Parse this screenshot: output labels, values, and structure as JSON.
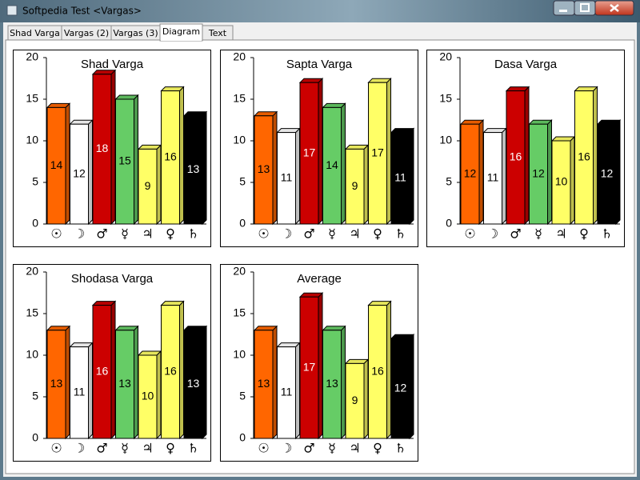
{
  "window": {
    "title": "Softpedia Test <Vargas>"
  },
  "tabs": [
    "Shad Varga",
    "Vargas (2)",
    "Vargas (3)",
    "Diagram",
    "Text"
  ],
  "selected_tab": 3,
  "chart_data": [
    {
      "type": "bar",
      "title": "Shad Varga",
      "categories": [
        "☉",
        "☽",
        "♂",
        "☿",
        "♃",
        "♀",
        "♄"
      ],
      "values": [
        14,
        12,
        18,
        15,
        9,
        16,
        13
      ],
      "colors": [
        "#ff6600",
        "#ffffff",
        "#cc0000",
        "#66cc66",
        "#ffff66",
        "#ffff66",
        "#000000"
      ],
      "ylim": [
        0,
        20
      ],
      "yticks": [
        0,
        5,
        10,
        15,
        20
      ]
    },
    {
      "type": "bar",
      "title": "Sapta Varga",
      "categories": [
        "☉",
        "☽",
        "♂",
        "☿",
        "♃",
        "♀",
        "♄"
      ],
      "values": [
        13,
        11,
        17,
        14,
        9,
        17,
        11
      ],
      "colors": [
        "#ff6600",
        "#ffffff",
        "#cc0000",
        "#66cc66",
        "#ffff66",
        "#ffff66",
        "#000000"
      ],
      "ylim": [
        0,
        20
      ],
      "yticks": [
        0,
        5,
        10,
        15,
        20
      ]
    },
    {
      "type": "bar",
      "title": "Dasa Varga",
      "categories": [
        "☉",
        "☽",
        "♂",
        "☿",
        "♃",
        "♀",
        "♄"
      ],
      "values": [
        12,
        11,
        16,
        12,
        10,
        16,
        12
      ],
      "colors": [
        "#ff6600",
        "#ffffff",
        "#cc0000",
        "#66cc66",
        "#ffff66",
        "#ffff66",
        "#000000"
      ],
      "ylim": [
        0,
        20
      ],
      "yticks": [
        0,
        5,
        10,
        15,
        20
      ]
    },
    {
      "type": "bar",
      "title": "Shodasa Varga",
      "categories": [
        "☉",
        "☽",
        "♂",
        "☿",
        "♃",
        "♀",
        "♄"
      ],
      "values": [
        13,
        11,
        16,
        13,
        10,
        16,
        13
      ],
      "colors": [
        "#ff6600",
        "#ffffff",
        "#cc0000",
        "#66cc66",
        "#ffff66",
        "#ffff66",
        "#000000"
      ],
      "ylim": [
        0,
        20
      ],
      "yticks": [
        0,
        5,
        10,
        15,
        20
      ]
    },
    {
      "type": "bar",
      "title": "Average",
      "categories": [
        "☉",
        "☽",
        "♂",
        "☿",
        "♃",
        "♀",
        "♄"
      ],
      "values": [
        13,
        11,
        17,
        13,
        9,
        16,
        12
      ],
      "colors": [
        "#ff6600",
        "#ffffff",
        "#cc0000",
        "#66cc66",
        "#ffff66",
        "#ffff66",
        "#000000"
      ],
      "ylim": [
        0,
        20
      ],
      "yticks": [
        0,
        5,
        10,
        15,
        20
      ]
    }
  ]
}
